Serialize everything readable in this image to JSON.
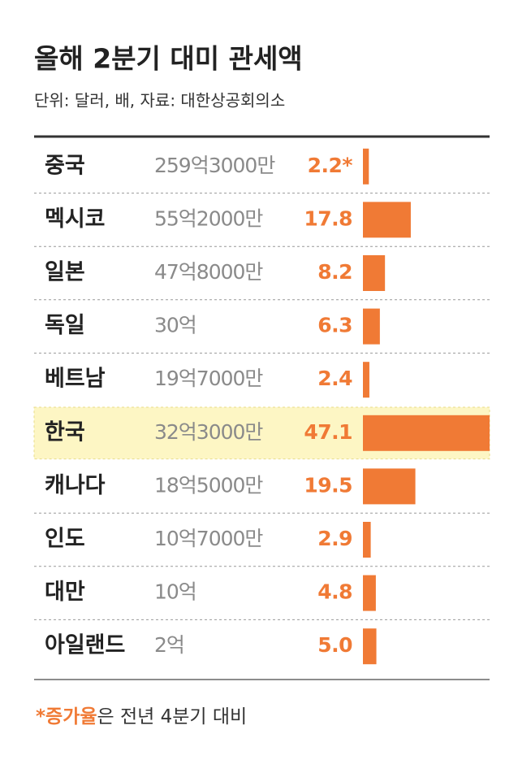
{
  "chart_data": {
    "type": "bar",
    "orientation": "horizontal",
    "title": "올해 2분기 대미 관세액",
    "subtitle": "단위: 달러, 배, 자료: 대한상공회의소",
    "categories": [
      "중국",
      "멕시코",
      "일본",
      "독일",
      "베트남",
      "한국",
      "캐나다",
      "인도",
      "대만",
      "아일랜드"
    ],
    "amounts": [
      "259억3000만",
      "55억2000만",
      "47억8000만",
      "30억",
      "19억7000만",
      "32억3000만",
      "18억5000만",
      "10억7000만",
      "10억",
      "2억"
    ],
    "values": [
      2.2,
      17.8,
      8.2,
      6.3,
      2.4,
      47.1,
      19.5,
      2.9,
      4.8,
      5.0
    ],
    "value_labels": [
      "2.2*",
      "17.8",
      "8.2",
      "6.3",
      "2.4",
      "47.1",
      "19.5",
      "2.9",
      "4.8",
      "5.0"
    ],
    "color": "#f07a35",
    "highlight_index": 5,
    "note_marker": "*증가율",
    "note_text": "은 전년 4분기 대비"
  }
}
